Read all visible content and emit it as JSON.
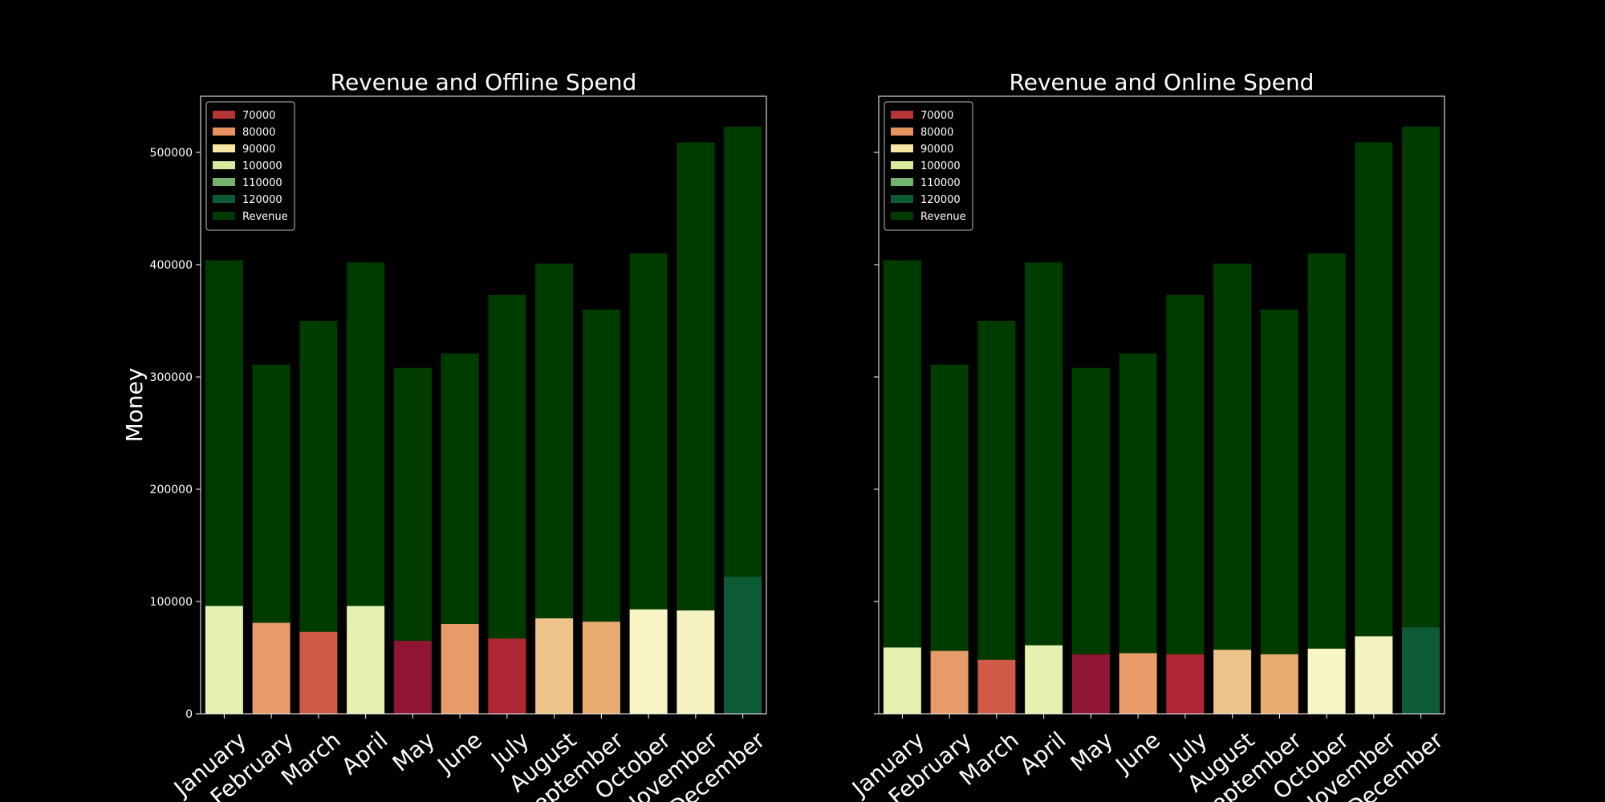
{
  "figure": {
    "background": "#000000"
  },
  "chart_data": [
    {
      "type": "bar",
      "title": "Revenue and Offline Spend",
      "xlabel": "",
      "ylabel": "Money",
      "ylim": [
        0,
        550000
      ],
      "yticks": [
        0,
        100000,
        200000,
        300000,
        400000,
        500000
      ],
      "show_ytick_labels": true,
      "grid": false,
      "legend_position": "top-left",
      "categories": [
        "January",
        "February",
        "March",
        "April",
        "May",
        "June",
        "July",
        "August",
        "September",
        "October",
        "November",
        "December"
      ],
      "series": [
        {
          "name": "Revenue",
          "color": "#003b00",
          "values": [
            404000,
            311000,
            350000,
            402000,
            308000,
            321000,
            373000,
            401000,
            360000,
            410000,
            509000,
            523000
          ]
        },
        {
          "name": "Spend",
          "values": [
            96000,
            81000,
            73000,
            96000,
            65000,
            80000,
            67000,
            85000,
            82000,
            93000,
            92000,
            122000
          ],
          "colors": [
            "#e6f1b1",
            "#e69b68",
            "#cf5a48",
            "#e6f1b1",
            "#8e1533",
            "#e69b68",
            "#ae2536",
            "#efc48a",
            "#e9ab72",
            "#f7f5c4",
            "#f6f3c2",
            "#0d5a37"
          ]
        }
      ],
      "legend": [
        {
          "label": "70000",
          "color": "#b53534"
        },
        {
          "label": "80000",
          "color": "#e7935f"
        },
        {
          "label": "90000",
          "color": "#f6e6a2"
        },
        {
          "label": "100000",
          "color": "#d8eb9b"
        },
        {
          "label": "110000",
          "color": "#72b46e"
        },
        {
          "label": "120000",
          "color": "#0d5a37"
        },
        {
          "label": "Revenue",
          "color": "#003b00"
        }
      ]
    },
    {
      "type": "bar",
      "title": "Revenue and Online Spend",
      "xlabel": "",
      "ylabel": "",
      "ylim": [
        0,
        550000
      ],
      "yticks": [
        0,
        100000,
        200000,
        300000,
        400000,
        500000
      ],
      "show_ytick_labels": false,
      "grid": false,
      "legend_position": "top-left",
      "categories": [
        "January",
        "February",
        "March",
        "April",
        "May",
        "June",
        "July",
        "August",
        "September",
        "October",
        "November",
        "December"
      ],
      "series": [
        {
          "name": "Revenue",
          "color": "#003b00",
          "values": [
            404000,
            311000,
            350000,
            402000,
            308000,
            321000,
            373000,
            401000,
            360000,
            410000,
            509000,
            523000
          ]
        },
        {
          "name": "Spend",
          "values": [
            59000,
            56000,
            48000,
            61000,
            53000,
            54000,
            53000,
            57000,
            53000,
            58000,
            69000,
            77000
          ],
          "colors": [
            "#e6f1b1",
            "#e69b68",
            "#cf5a48",
            "#e6f1b1",
            "#8e1533",
            "#e69b68",
            "#ae2536",
            "#efc48a",
            "#e9ab72",
            "#f7f5c4",
            "#f6f3c2",
            "#0d5a37"
          ]
        }
      ],
      "legend": [
        {
          "label": "70000",
          "color": "#b53534"
        },
        {
          "label": "80000",
          "color": "#e7935f"
        },
        {
          "label": "90000",
          "color": "#f6e6a2"
        },
        {
          "label": "100000",
          "color": "#d8eb9b"
        },
        {
          "label": "110000",
          "color": "#72b46e"
        },
        {
          "label": "120000",
          "color": "#0d5a37"
        },
        {
          "label": "Revenue",
          "color": "#003b00"
        }
      ]
    }
  ]
}
